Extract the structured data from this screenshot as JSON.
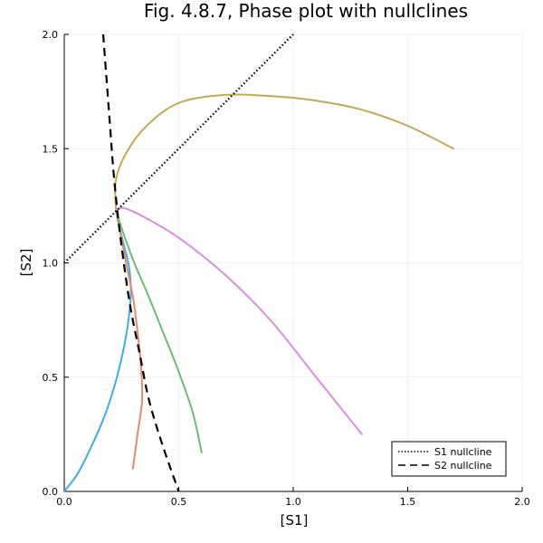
{
  "chart_data": {
    "type": "line",
    "title": "Fig. 4.8.7, Phase plot with nullclines",
    "xlabel": "[S1]",
    "ylabel": "[S2]",
    "xlim": [
      0,
      2
    ],
    "ylim": [
      0,
      2
    ],
    "xticks": [
      0.0,
      0.5,
      1.0,
      1.5,
      2.0
    ],
    "yticks": [
      0.0,
      0.5,
      1.0,
      1.5,
      2.0
    ],
    "xtick_labels": [
      "0.0",
      "0.5",
      "1.0",
      "1.5",
      "2.0"
    ],
    "ytick_labels": [
      "0.0",
      "0.5",
      "1.0",
      "1.5",
      "2.0"
    ],
    "grid": true,
    "legend_position": "bottom-right",
    "trajectories": [
      {
        "color": "#3daee9",
        "points": [
          [
            0,
            0
          ],
          [
            0.06,
            0.08
          ],
          [
            0.12,
            0.2
          ],
          [
            0.18,
            0.34
          ],
          [
            0.23,
            0.5
          ],
          [
            0.27,
            0.68
          ],
          [
            0.29,
            0.85
          ],
          [
            0.285,
            0.97
          ],
          [
            0.26,
            1.08
          ],
          [
            0.235,
            1.18
          ],
          [
            0.226,
            1.23
          ]
        ]
      },
      {
        "color": "#e8896d",
        "points": [
          [
            0.3,
            0.1
          ],
          [
            0.32,
            0.25
          ],
          [
            0.34,
            0.4
          ],
          [
            0.335,
            0.55
          ],
          [
            0.32,
            0.7
          ],
          [
            0.3,
            0.85
          ],
          [
            0.27,
            1.0
          ],
          [
            0.245,
            1.13
          ],
          [
            0.226,
            1.23
          ]
        ]
      },
      {
        "color": "#6bbd6e",
        "points": [
          [
            0.6,
            0.17
          ],
          [
            0.56,
            0.35
          ],
          [
            0.49,
            0.55
          ],
          [
            0.43,
            0.7
          ],
          [
            0.37,
            0.85
          ],
          [
            0.31,
            0.99
          ],
          [
            0.265,
            1.11
          ],
          [
            0.226,
            1.23
          ]
        ]
      },
      {
        "color": "#d88ee0",
        "points": [
          [
            1.3,
            0.25
          ],
          [
            1.1,
            0.5
          ],
          [
            0.9,
            0.75
          ],
          [
            0.7,
            0.95
          ],
          [
            0.5,
            1.11
          ],
          [
            0.35,
            1.2
          ],
          [
            0.26,
            1.24
          ],
          [
            0.226,
            1.23
          ]
        ]
      },
      {
        "color": "#c3a855",
        "points": [
          [
            1.7,
            1.5
          ],
          [
            1.5,
            1.6
          ],
          [
            1.3,
            1.67
          ],
          [
            1.1,
            1.71
          ],
          [
            0.9,
            1.73
          ],
          [
            0.7,
            1.735
          ],
          [
            0.5,
            1.7
          ],
          [
            0.36,
            1.6
          ],
          [
            0.27,
            1.48
          ],
          [
            0.225,
            1.36
          ],
          [
            0.226,
            1.23
          ]
        ]
      }
    ],
    "nullclines": [
      {
        "name": "S1 nullcline",
        "style": "dotted",
        "color": "#000000",
        "points": [
          [
            0,
            1
          ],
          [
            1,
            2
          ]
        ]
      },
      {
        "name": "S2 nullcline",
        "style": "dashed",
        "color": "#000000",
        "points": [
          [
            0.17,
            2.0
          ],
          [
            0.185,
            1.8
          ],
          [
            0.2,
            1.6
          ],
          [
            0.215,
            1.4
          ],
          [
            0.235,
            1.2
          ],
          [
            0.26,
            1.0
          ],
          [
            0.29,
            0.8
          ],
          [
            0.33,
            0.6
          ],
          [
            0.37,
            0.4
          ],
          [
            0.43,
            0.2
          ],
          [
            0.5,
            0.0
          ]
        ]
      }
    ]
  }
}
